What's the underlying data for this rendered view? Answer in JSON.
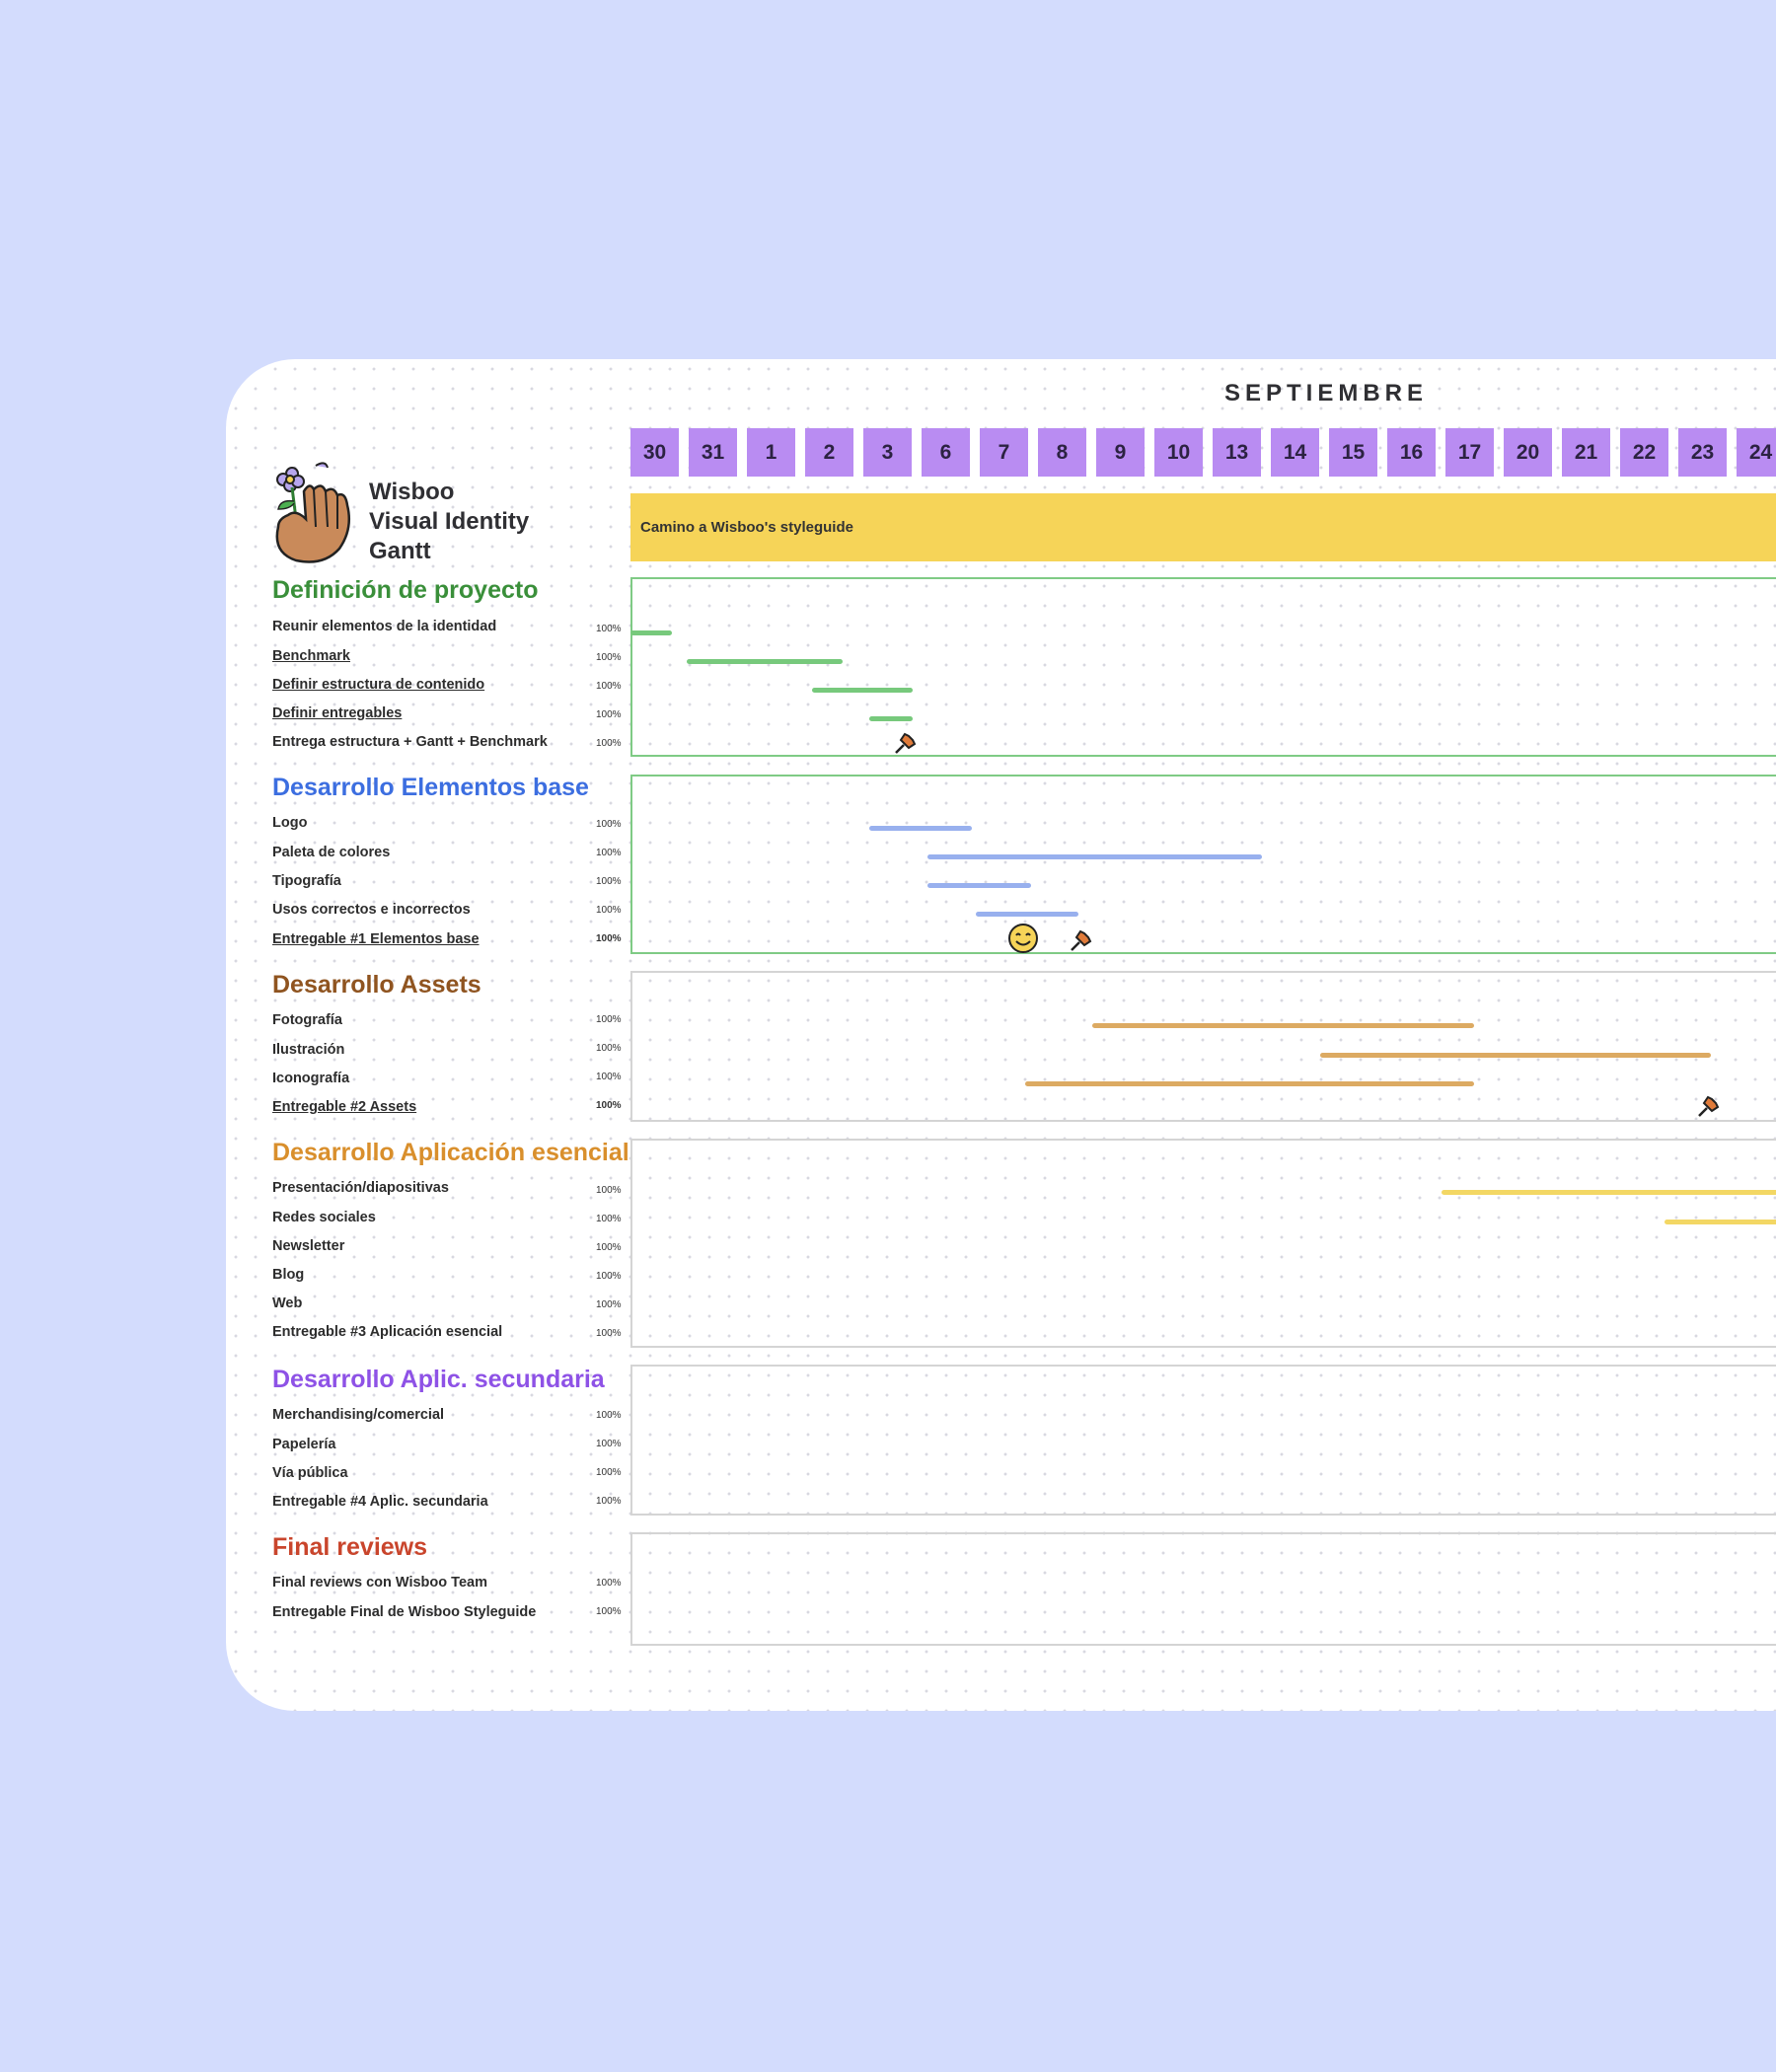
{
  "header": {
    "month": "SEPTIEMBRE",
    "days": [
      "30",
      "31",
      "1",
      "2",
      "3",
      "6",
      "7",
      "8",
      "9",
      "10",
      "13",
      "14",
      "15",
      "16",
      "17",
      "20",
      "21",
      "22",
      "23",
      "24"
    ],
    "banner": "Camino a Wisboo's styleguide"
  },
  "title": {
    "line1": "Wisboo",
    "line2": "Visual Identity",
    "line3": "Gantt"
  },
  "colors": {
    "background": "#d3dcfd",
    "day_box": "#b98cf2",
    "banner": "#f6d458",
    "definicion": "#3a8f3a",
    "elementos": "#3c6ee0",
    "assets": "#8f5420",
    "aplicacion": "#d98f2c",
    "secundaria": "#8e52e6",
    "final": "#c9452c"
  },
  "icons": {
    "logo": "hand-flower-icon",
    "milestone": "pin-milestone-icon",
    "smiley": "smiley-face-icon"
  },
  "sections": [
    {
      "title": "Definición de proyecto",
      "tasks": [
        {
          "label": "Reunir elementos de la identidad",
          "pct": "100%"
        },
        {
          "label": "Benchmark",
          "pct": "100%"
        },
        {
          "label": "Definir estructura de contenido",
          "pct": "100%"
        },
        {
          "label": "Definir entregables",
          "pct": "100%"
        },
        {
          "label": "Entrega estructura + Gantt + Benchmark",
          "pct": "100%"
        }
      ]
    },
    {
      "title": "Desarrollo Elementos base",
      "tasks": [
        {
          "label": "Logo",
          "pct": "100%"
        },
        {
          "label": "Paleta de colores",
          "pct": "100%"
        },
        {
          "label": "Tipografía",
          "pct": "100%"
        },
        {
          "label": "Usos correctos e incorrectos",
          "pct": "100%"
        },
        {
          "label": "Entregable #1 Elementos base",
          "pct": "100%"
        }
      ]
    },
    {
      "title": "Desarrollo Assets",
      "tasks": [
        {
          "label": "Fotografía",
          "pct": "100%"
        },
        {
          "label": "Ilustración",
          "pct": "100%"
        },
        {
          "label": "Iconografía",
          "pct": "100%"
        },
        {
          "label": "Entregable #2 Assets",
          "pct": "100%"
        }
      ]
    },
    {
      "title": "Desarrollo Aplicación esencial",
      "tasks": [
        {
          "label": "Presentación/diapositivas",
          "pct": "100%"
        },
        {
          "label": "Redes sociales",
          "pct": "100%"
        },
        {
          "label": "Newsletter",
          "pct": "100%"
        },
        {
          "label": "Blog",
          "pct": "100%"
        },
        {
          "label": "Web",
          "pct": "100%"
        },
        {
          "label": "Entregable #3 Aplicación esencial",
          "pct": "100%"
        }
      ]
    },
    {
      "title": "Desarrollo Aplic. secundaria",
      "tasks": [
        {
          "label": "Merchandising/comercial",
          "pct": "100%"
        },
        {
          "label": "Papelería",
          "pct": "100%"
        },
        {
          "label": "Vía pública",
          "pct": "100%"
        },
        {
          "label": "Entregable #4 Aplic. secundaria",
          "pct": "100%"
        }
      ]
    },
    {
      "title": "Final reviews",
      "tasks": [
        {
          "label": "Final reviews con Wisboo Team",
          "pct": "100%"
        },
        {
          "label": "Entregable Final de Wisboo Styleguide",
          "pct": "100%"
        }
      ]
    }
  ]
}
